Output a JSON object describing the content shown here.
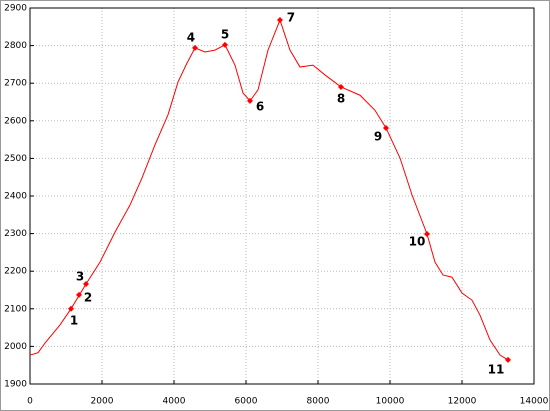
{
  "chart_data": {
    "type": "line",
    "series": [
      {
        "color": "#ff0000",
        "x": [
          0,
          222,
          417,
          833,
          1139,
          1556,
          1944,
          2361,
          2778,
          3111,
          3472,
          3833,
          4111,
          4333,
          4583,
          4861,
          5139,
          5417,
          5694,
          5917,
          6111,
          6333,
          6611,
          6944,
          7222,
          7500,
          7861,
          8194,
          8639,
          9167,
          9583,
          9889,
          10278,
          10611,
          11028,
          11250,
          11472,
          11722,
          12000,
          12278,
          12500,
          12778,
          13056,
          13278
        ],
        "values": [
          1977,
          1983,
          2009,
          2057,
          2100,
          2166,
          2224,
          2304,
          2376,
          2448,
          2536,
          2616,
          2703,
          2748,
          2794,
          2783,
          2788,
          2802,
          2748,
          2674,
          2653,
          2682,
          2788,
          2868,
          2788,
          2743,
          2748,
          2722,
          2690,
          2668,
          2628,
          2581,
          2501,
          2403,
          2299,
          2224,
          2190,
          2184,
          2142,
          2123,
          2083,
          2017,
          1977,
          1964
        ]
      }
    ],
    "points": {
      "color": "#ff0000",
      "x": [
        1139,
        1361,
        1556,
        4583,
        5417,
        6111,
        6944,
        8639,
        9889,
        11028,
        13278
      ],
      "values": [
        2100,
        2137,
        2166,
        2794,
        2802,
        2653,
        2868,
        2690,
        2581,
        2299,
        1964
      ],
      "labels": [
        "1",
        "2",
        "3",
        "4",
        "5",
        "6",
        "7",
        "8",
        "9",
        "10",
        "11"
      ]
    },
    "xlim": [
      0,
      14000
    ],
    "xticks": [
      0,
      2000,
      4000,
      6000,
      8000,
      10000,
      12000,
      14000
    ],
    "ylim": [
      1900,
      2900
    ],
    "yticks": [
      1900,
      2000,
      2100,
      2200,
      2300,
      2400,
      2500,
      2600,
      2700,
      2800,
      2900
    ],
    "grid": true
  }
}
